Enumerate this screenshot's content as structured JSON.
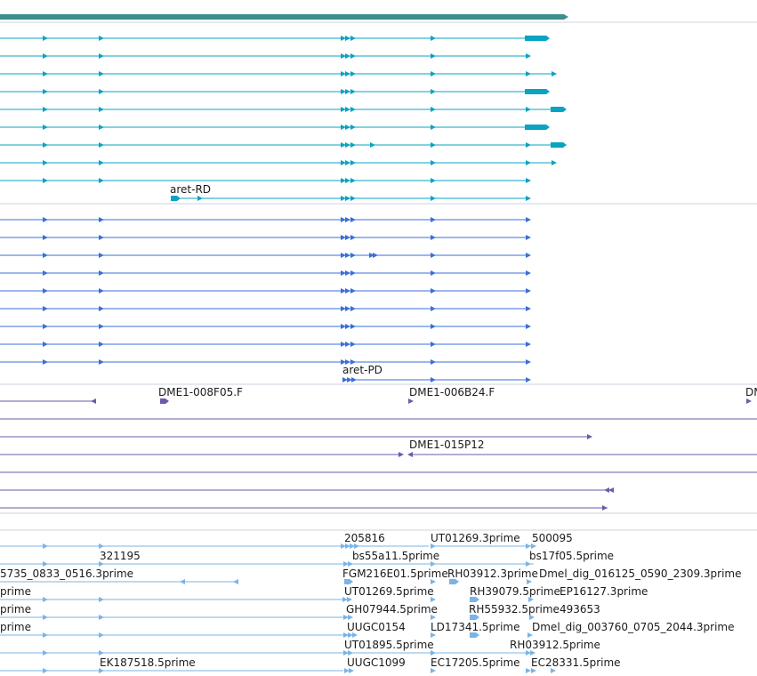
{
  "colors": {
    "top_bar": "#3e8e8e",
    "transcript_cyan": "#0aa3c2",
    "transcript_blue": "#3a6fd8",
    "clone_purple": "#6e5aa8",
    "est_light": "#7ab4e6",
    "separator": "#c8d4dc"
  },
  "tracks": {
    "gene_model_a": {
      "label": "aret-RD"
    },
    "gene_model_b": {
      "label": "aret-PD"
    },
    "cdna_clones": {
      "label_1": "DME1-008F05.F",
      "label_2": "DME1-006B24.F",
      "label_3": "DME1-015P12",
      "label_4": "DM"
    },
    "est_rows": [
      [
        "205816",
        "UT01269.3prime",
        "500095"
      ],
      [
        "321195",
        "bs55a11.5prime",
        "bs17f05.5prime"
      ],
      [
        "5735_0833_0516.3prime",
        "FGM216E01.5prime",
        "RH03912.3prime",
        "Dmel_dig_016125_0590_2309.3prime"
      ],
      [
        "prime",
        "UT01269.5prime",
        "RH39079.5prime",
        "EP16127.3prime"
      ],
      [
        "prime",
        "GH07944.5prime",
        "RH55932.5prime",
        "493653"
      ],
      [
        "prime",
        "UUGC0154",
        "LD17341.5prime",
        "Dmel_dig_003760_0705_2044.3prime"
      ],
      [
        "UT01895.5prime",
        "RH03912.5prime"
      ],
      [
        "EK187518.5prime",
        "UUGC1099",
        "EC17205.5prime",
        "EC28331.5prime"
      ]
    ]
  }
}
